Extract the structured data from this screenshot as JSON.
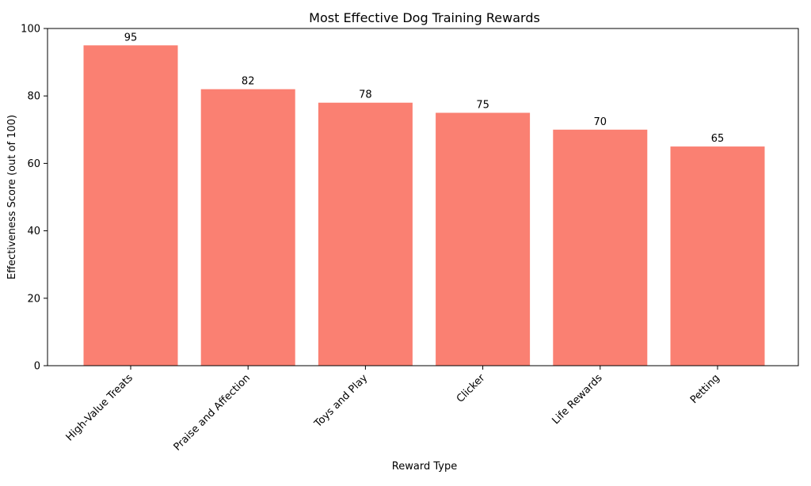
{
  "chart_data": {
    "type": "bar",
    "title": "Most Effective Dog Training Rewards",
    "xlabel": "Reward Type",
    "ylabel": "Effectiveness Score (out of 100)",
    "categories": [
      "High-Value Treats",
      "Praise and Affection",
      "Toys and Play",
      "Clicker",
      "Life Rewards",
      "Petting"
    ],
    "values": [
      95,
      82,
      78,
      75,
      70,
      65
    ],
    "ylim": [
      0,
      100
    ],
    "yticks": [
      0,
      20,
      40,
      60,
      80,
      100
    ],
    "bar_color": "#fa8072",
    "grid": false,
    "legend": "none"
  }
}
